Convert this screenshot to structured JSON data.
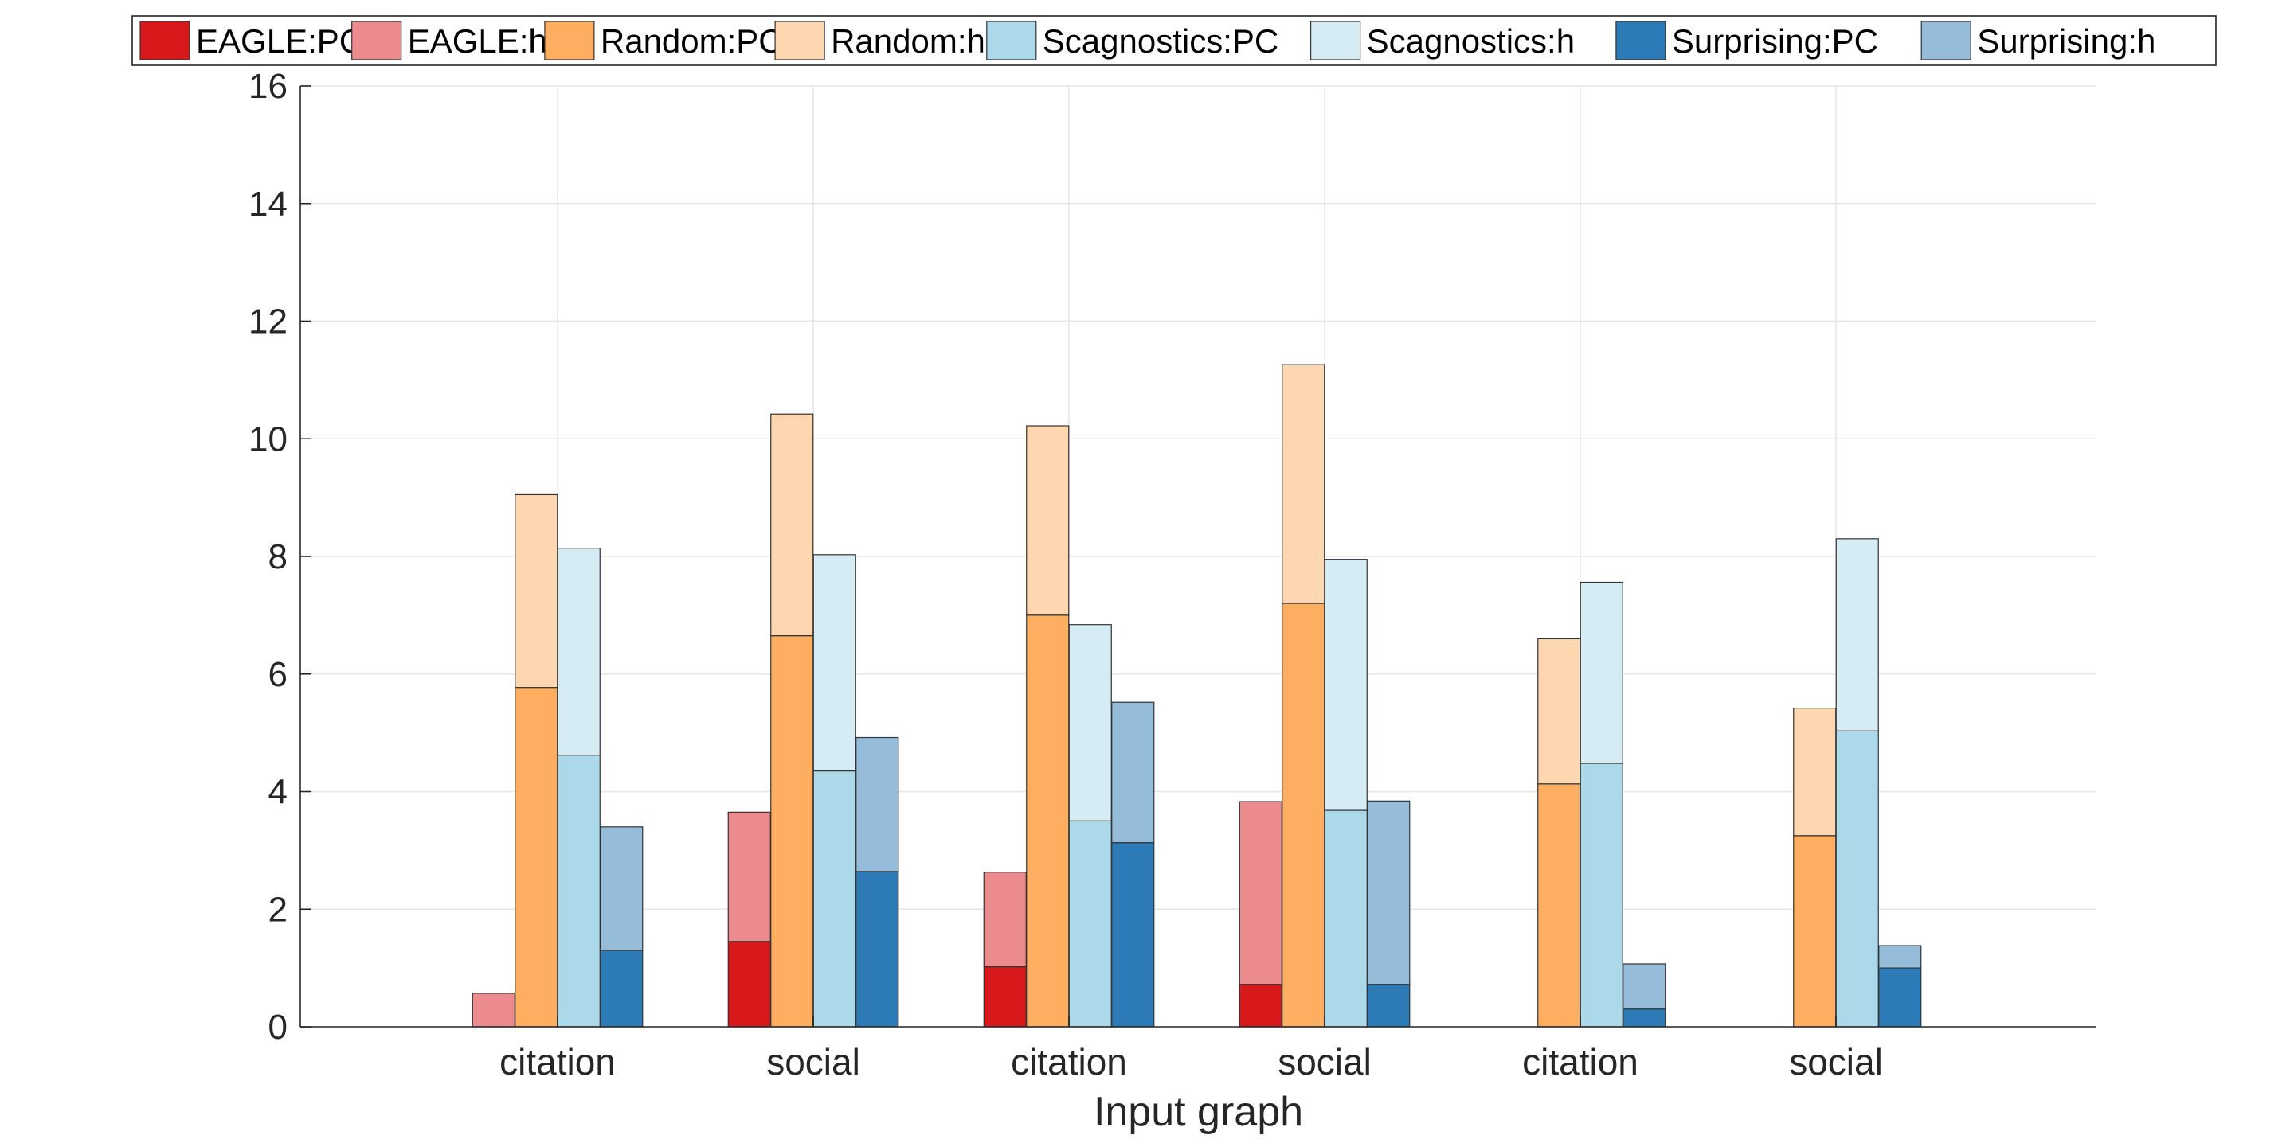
{
  "chart_data": {
    "type": "bar",
    "stacked_pairs": true,
    "categories": [
      "citation",
      "social",
      "citation",
      "social",
      "citation",
      "social"
    ],
    "xlabel": "Input graph",
    "ylabel": "",
    "ylim": [
      0,
      16
    ],
    "yticks": [
      0,
      2,
      4,
      6,
      8,
      10,
      12,
      14,
      16
    ],
    "grid": true,
    "legend_position": "top",
    "legend": [
      "EAGLE:PC",
      "EAGLE:h",
      "Random:PC",
      "Random:h",
      "Scagnostics:PC",
      "Scagnostics:h",
      "Surprising:PC",
      "Surprising:h"
    ],
    "series": [
      {
        "method": "EAGLE",
        "pc_label": "EAGLE:PC",
        "h_label": "EAGLE:h",
        "pc_color": "#d7191c",
        "h_color": "#ec8b8d",
        "pc": [
          0,
          1.45,
          1.02,
          0.72,
          0,
          0
        ],
        "total": [
          0.57,
          3.65,
          2.63,
          3.83,
          0,
          0
        ]
      },
      {
        "method": "Random",
        "pc_label": "Random:PC",
        "h_label": "Random:h",
        "pc_color": "#fdae61",
        "h_color": "#fed6b0",
        "pc": [
          5.77,
          6.65,
          7.0,
          7.2,
          4.13,
          3.25
        ],
        "total": [
          9.05,
          10.42,
          10.22,
          11.26,
          6.6,
          5.42
        ]
      },
      {
        "method": "Scagnostics",
        "pc_label": "Scagnostics:PC",
        "h_label": "Scagnostics:h",
        "pc_color": "#abd9e9",
        "h_color": "#d5ecf4",
        "pc": [
          4.62,
          4.35,
          3.5,
          3.68,
          4.48,
          5.03
        ],
        "total": [
          8.14,
          8.03,
          6.84,
          7.95,
          7.56,
          8.3
        ]
      },
      {
        "method": "Surprising",
        "pc_label": "Surprising:PC",
        "h_label": "Surprising:h",
        "pc_color": "#2c7bb6",
        "h_color": "#95bdda",
        "pc": [
          1.3,
          2.64,
          3.13,
          0.72,
          0.3,
          1.0
        ],
        "total": [
          3.4,
          4.92,
          5.52,
          3.84,
          1.07,
          1.38
        ]
      }
    ]
  }
}
